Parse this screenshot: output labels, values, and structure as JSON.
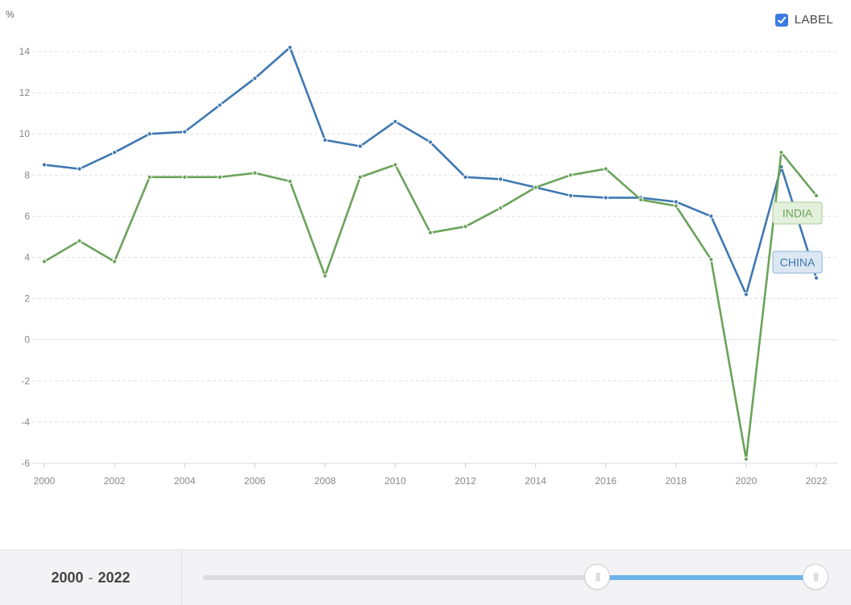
{
  "legend": {
    "label": "LABEL",
    "checked": true,
    "check_icon": "checkmark-icon"
  },
  "footer": {
    "range_start": "2000",
    "range_sep": "-",
    "range_end": "2022",
    "slider_start_fraction": 0.644,
    "slider_end_fraction": 1.0,
    "handle_grip": "|||"
  },
  "chart_data": {
    "type": "line",
    "unit": "%",
    "x": [
      2000,
      2001,
      2002,
      2003,
      2004,
      2005,
      2006,
      2007,
      2008,
      2009,
      2010,
      2011,
      2012,
      2013,
      2014,
      2015,
      2016,
      2017,
      2018,
      2019,
      2020,
      2021,
      2022
    ],
    "xticks": [
      2000,
      2002,
      2004,
      2006,
      2008,
      2010,
      2012,
      2014,
      2016,
      2018,
      2020,
      2022
    ],
    "ylim": [
      -6,
      14
    ],
    "yticks": [
      -6,
      -4,
      -2,
      0,
      2,
      4,
      6,
      8,
      10,
      12,
      14
    ],
    "grid": true,
    "series": [
      {
        "name": "CHINA",
        "color": "#3f78b0",
        "label_fill": "#dbe7f3",
        "label_stroke": "#8fb3d6",
        "values": [
          8.5,
          8.3,
          9.1,
          10.0,
          10.1,
          11.4,
          12.7,
          14.2,
          9.7,
          9.4,
          10.6,
          9.6,
          7.9,
          7.8,
          7.4,
          7.0,
          6.9,
          6.9,
          6.7,
          6.0,
          2.2,
          8.4,
          3.0
        ]
      },
      {
        "name": "INDIA",
        "color": "#6aa35a",
        "label_fill": "#e3f0dc",
        "label_stroke": "#a8cf97",
        "values": [
          3.8,
          4.8,
          3.8,
          7.9,
          7.9,
          7.9,
          8.1,
          7.7,
          3.1,
          7.9,
          8.5,
          5.2,
          5.5,
          6.4,
          7.4,
          8.0,
          8.3,
          6.8,
          6.5,
          3.9,
          -5.8,
          9.1,
          7.0
        ]
      }
    ]
  }
}
